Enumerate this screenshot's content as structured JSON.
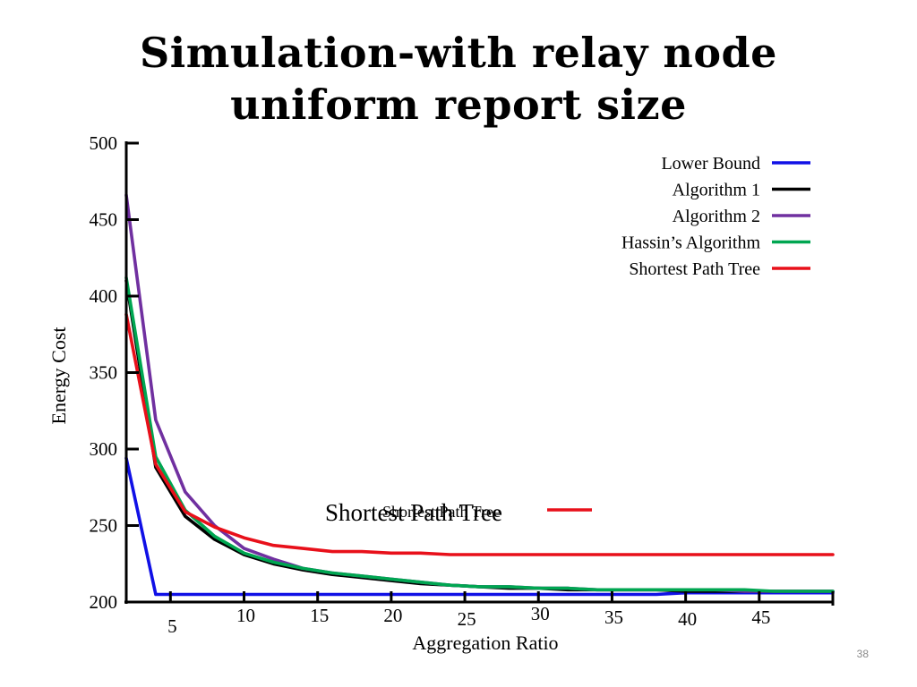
{
  "slide": {
    "title_line1": "Simulation-with relay node",
    "title_line2": "uniform report size",
    "slide_number": "38",
    "floating_label_large": "Shortest Path Tree",
    "floating_label_small": "Shortest Path Tree",
    "floating_swatch_color": "#e8101a"
  },
  "chart_data": {
    "type": "line",
    "xlabel": "Aggregation Ratio",
    "ylabel": "Energy Cost",
    "xlim": [
      2,
      50
    ],
    "ylim": [
      200,
      500
    ],
    "x_ticks": [
      5,
      10,
      15,
      20,
      25,
      30,
      35,
      40,
      45
    ],
    "x_tick_labels": [
      "5",
      "10",
      "15",
      "20",
      "25",
      "30",
      "35",
      "40",
      "45"
    ],
    "y_ticks": [
      200,
      250,
      300,
      350,
      400,
      450,
      500
    ],
    "y_tick_labels": [
      "200",
      "250",
      "300",
      "350",
      "400",
      "450",
      "500"
    ],
    "legend_position": "top-right",
    "x": [
      2,
      4,
      6,
      8,
      10,
      12,
      14,
      16,
      18,
      20,
      22,
      24,
      26,
      28,
      30,
      32,
      34,
      36,
      38,
      40,
      42,
      44,
      46,
      48,
      50
    ],
    "series": [
      {
        "name": "Lower Bound",
        "color": "#1010e6",
        "values": [
          294,
          205,
          205,
          205,
          205,
          205,
          205,
          205,
          205,
          205,
          205,
          205,
          205,
          205,
          205,
          205,
          205,
          205,
          205,
          206,
          206,
          206,
          206,
          206,
          206
        ]
      },
      {
        "name": "Algorithm 1",
        "color": "#000000",
        "values": [
          410,
          288,
          256,
          241,
          231,
          225,
          221,
          218,
          216,
          214,
          212,
          211,
          210,
          209,
          209,
          208,
          208,
          208,
          208,
          207,
          207,
          207,
          207,
          207,
          207
        ]
      },
      {
        "name": "Algorithm 2",
        "color": "#7030a0",
        "values": [
          466,
          319,
          272,
          250,
          235,
          228,
          222,
          219,
          217,
          215,
          213,
          211,
          210,
          210,
          209,
          209,
          208,
          208,
          208,
          208,
          208,
          207,
          207,
          207,
          207
        ]
      },
      {
        "name": "Hassin’s Algorithm",
        "color": "#00a651",
        "values": [
          412,
          295,
          260,
          243,
          232,
          226,
          222,
          219,
          217,
          215,
          213,
          211,
          210,
          210,
          209,
          209,
          208,
          208,
          208,
          208,
          208,
          208,
          207,
          207,
          207
        ]
      },
      {
        "name": "Shortest Path Tree",
        "color": "#e8101a",
        "values": [
          388,
          290,
          259,
          249,
          242,
          237,
          235,
          233,
          233,
          232,
          232,
          231,
          231,
          231,
          231,
          231,
          231,
          231,
          231,
          231,
          231,
          231,
          231,
          231,
          231
        ]
      }
    ]
  }
}
